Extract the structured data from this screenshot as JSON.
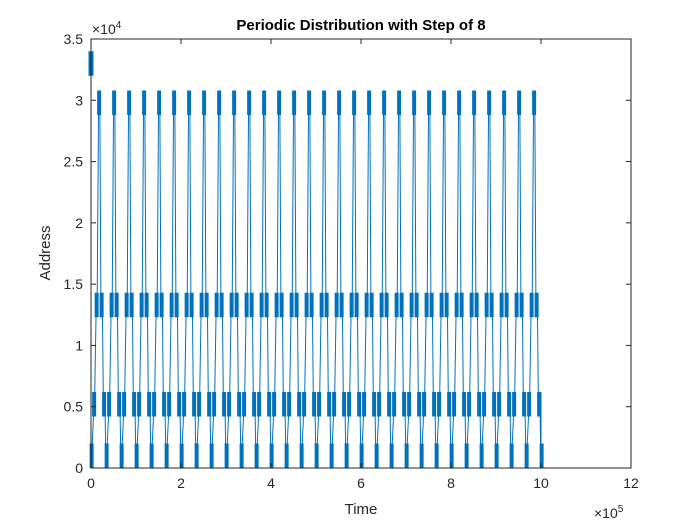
{
  "chart_data": {
    "type": "line",
    "title": "Periodic Distribution with Step of 8",
    "xlabel": "Time",
    "ylabel": "Address",
    "x_multiplier_base": "×10",
    "x_multiplier_exp": "5",
    "y_multiplier_base": "×10",
    "y_multiplier_exp": "4",
    "xlim": [
      0,
      1200000
    ],
    "ylim": [
      0,
      35000
    ],
    "x_ticks": [
      0,
      200000,
      400000,
      600000,
      800000,
      1000000,
      1200000
    ],
    "x_tick_labels": [
      "0",
      "2",
      "4",
      "6",
      "8",
      "10",
      "12"
    ],
    "y_ticks": [
      0,
      5000,
      10000,
      15000,
      20000,
      25000,
      30000,
      35000
    ],
    "y_tick_labels": [
      "0",
      "0.5",
      "1",
      "1.5",
      "2",
      "2.5",
      "3",
      "3.5"
    ],
    "grid": false,
    "series_color": "#0072BD",
    "x_end": 1000000,
    "period": 33333,
    "initial_band": [
      32000,
      34000
    ],
    "bands": [
      [
        0,
        2000
      ],
      [
        4200,
        6200
      ],
      [
        12300,
        14300
      ],
      [
        28800,
        30800
      ]
    ],
    "band_order": [
      0,
      1,
      2,
      3,
      2,
      1
    ]
  }
}
